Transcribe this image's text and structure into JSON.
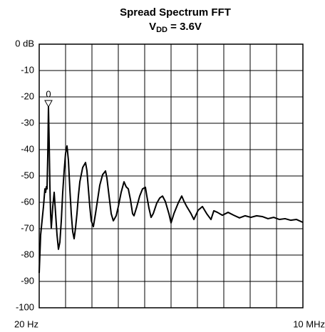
{
  "chart_data": {
    "type": "line",
    "title": "Spread Spectrum FFT",
    "subtitle_parts": [
      "V",
      "DD",
      " = 3.6V"
    ],
    "xlim": [
      20,
      10000000
    ],
    "xticks": [
      {
        "value": 20,
        "label": "20 Hz"
      },
      {
        "value": 10000000,
        "label": "10 MHz"
      }
    ],
    "xgrid": [
      1000000,
      2000000,
      3000000,
      4000000,
      5000000,
      6000000,
      7000000,
      8000000,
      9000000
    ],
    "ylim": [
      -100,
      0
    ],
    "yticks": [
      {
        "value": 0,
        "label": "0 dB"
      },
      -10,
      -20,
      -30,
      -40,
      -50,
      -60,
      -70,
      -80,
      -90,
      -100
    ],
    "grid": true,
    "marker": {
      "x": 351000,
      "y": -23.8,
      "label": "0"
    },
    "x": [
      20,
      54000,
      108000,
      162000,
      216000,
      243000,
      270000,
      297000,
      324000,
      351000,
      378000,
      405000,
      432000,
      459000,
      514000,
      568000,
      622000,
      676000,
      730000,
      784000,
      838000,
      892000,
      946000,
      1000000,
      1054000,
      1108000,
      1162000,
      1216000,
      1270000,
      1324000,
      1378000,
      1432000,
      1486000,
      1541000,
      1649000,
      1757000,
      1811000,
      1865000,
      1919000,
      1973000,
      2054000,
      2135000,
      2216000,
      2297000,
      2405000,
      2514000,
      2568000,
      2649000,
      2730000,
      2811000,
      2919000,
      3000000,
      3108000,
      3216000,
      3297000,
      3378000,
      3459000,
      3541000,
      3595000,
      3703000,
      3811000,
      3919000,
      4027000,
      4081000,
      4162000,
      4243000,
      4324000,
      4459000,
      4568000,
      4676000,
      4784000,
      4919000,
      5000000,
      5108000,
      5270000,
      5405000,
      5486000,
      5595000,
      5757000,
      5865000,
      6027000,
      6189000,
      6351000,
      6514000,
      6622000,
      6757000,
      6946000,
      7162000,
      7378000,
      7595000,
      7811000,
      8027000,
      8243000,
      8459000,
      8676000,
      8892000,
      9108000,
      9324000,
      9541000,
      9757000,
      10000000
    ],
    "series": [
      {
        "color": "#000000",
        "values": [
          -86.8,
          -72.4,
          -67,
          -61.6,
          -54.9,
          -56.2,
          -54.1,
          -54.9,
          -42.7,
          -23.8,
          -37.3,
          -53.5,
          -64.3,
          -69.7,
          -61.6,
          -56.2,
          -64.3,
          -72.4,
          -77.8,
          -75.1,
          -67,
          -56.2,
          -48.1,
          -41.4,
          -38.6,
          -44.1,
          -54.9,
          -64.3,
          -71.1,
          -73.8,
          -69.7,
          -64.3,
          -57.6,
          -52.2,
          -46.8,
          -44.9,
          -48.1,
          -54.9,
          -61.6,
          -67,
          -69.2,
          -64.3,
          -58.9,
          -53.5,
          -49.5,
          -48.1,
          -50.8,
          -57.6,
          -64.3,
          -67,
          -65.1,
          -61.6,
          -56.2,
          -52.2,
          -54.1,
          -54.9,
          -58.9,
          -64.3,
          -65.1,
          -61.6,
          -57.6,
          -54.9,
          -54.3,
          -57.6,
          -62.2,
          -65.7,
          -64.3,
          -60.3,
          -58.4,
          -57.6,
          -59.7,
          -64.3,
          -67.8,
          -64.3,
          -60.3,
          -57.6,
          -59.5,
          -61.6,
          -64.3,
          -66.5,
          -63,
          -61.6,
          -64.3,
          -66.5,
          -63.2,
          -63.8,
          -64.9,
          -63.8,
          -64.9,
          -65.9,
          -65.1,
          -65.7,
          -65.1,
          -65.4,
          -66.2,
          -65.7,
          -66.5,
          -66.2,
          -66.8,
          -66.5,
          -67.6
        ]
      }
    ]
  }
}
